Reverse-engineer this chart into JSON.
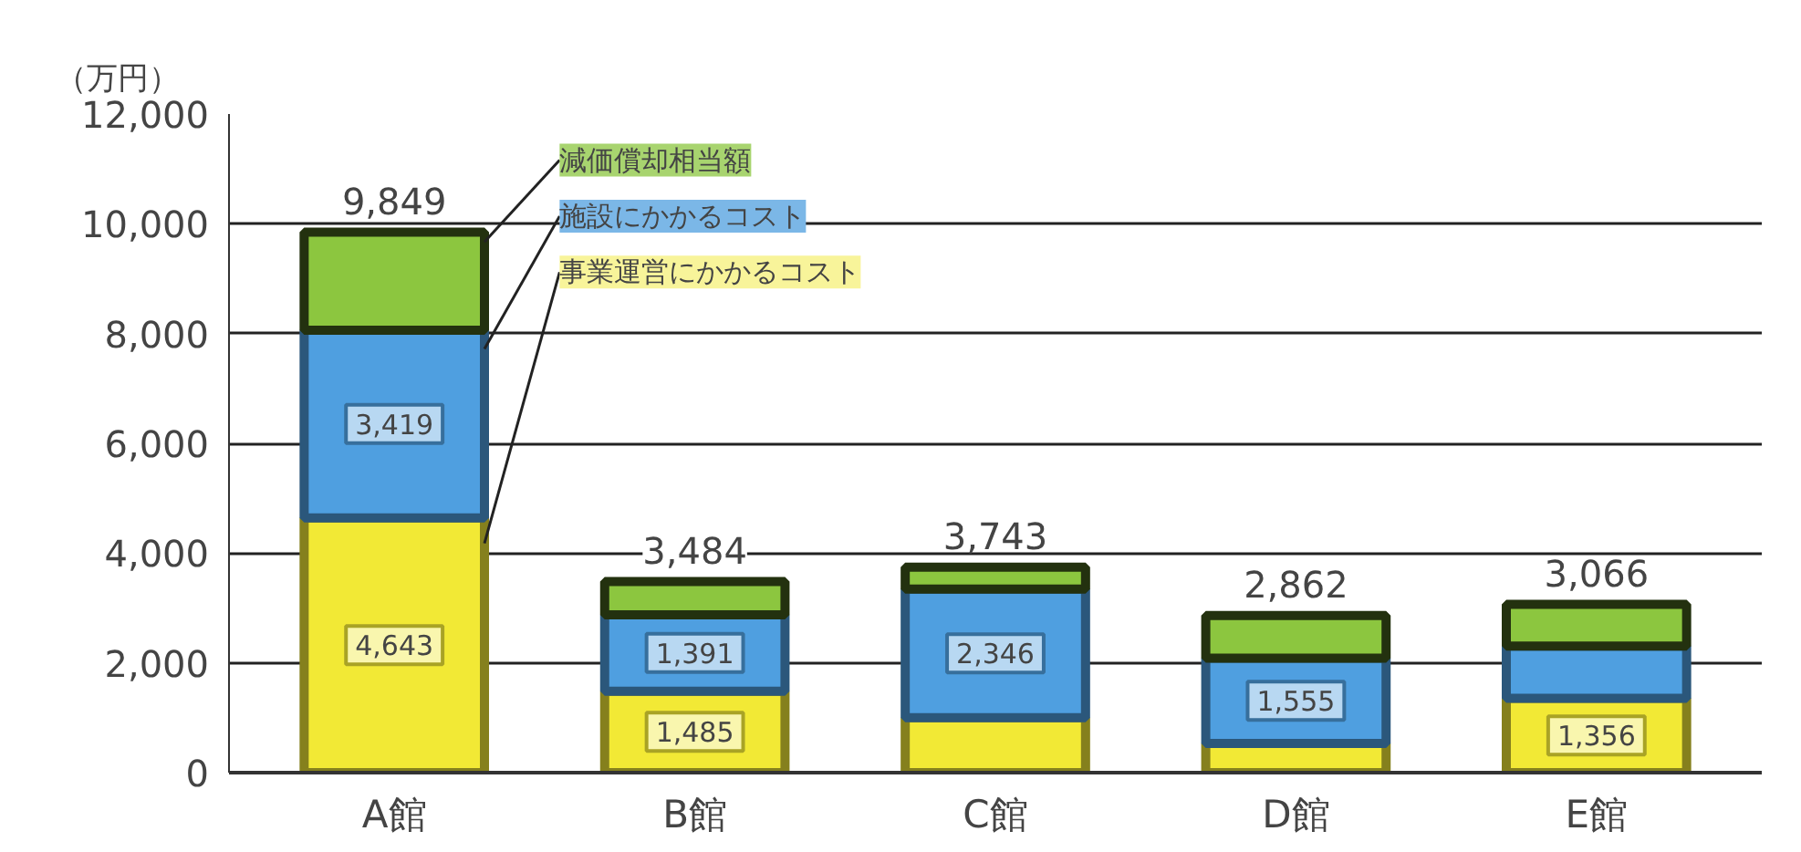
{
  "chart_data": {
    "type": "bar",
    "stacked": true,
    "ylabel": "（万円）",
    "categories": [
      "A館",
      "B館",
      "C館",
      "D館",
      "E館"
    ],
    "series": [
      {
        "name": "事業運営にかかるコスト",
        "color": "#f2e935",
        "values": [
          4643,
          1485,
          1000,
          530,
          1356
        ],
        "value_labels": [
          "4,643",
          "1,485",
          null,
          null,
          "1,356"
        ]
      },
      {
        "name": "施設にかかるコスト",
        "color": "#4f9fe0",
        "values": [
          3419,
          1391,
          2346,
          1555,
          950
        ],
        "value_labels": [
          "3,419",
          "1,391",
          "2,346",
          "1,555",
          null
        ]
      },
      {
        "name": "減価償却相当額",
        "color": "#8cc63f",
        "values": [
          1787,
          608,
          397,
          777,
          760
        ]
      }
    ],
    "totals": [
      "9,849",
      "3,484",
      "3,743",
      "2,862",
      "3,066"
    ],
    "ylim": [
      0,
      12000
    ],
    "yticks": [
      {
        "value": 0,
        "label": "0"
      },
      {
        "value": 2000,
        "label": "2,000"
      },
      {
        "value": 4000,
        "label": "4,000"
      },
      {
        "value": 6000,
        "label": "6,000"
      },
      {
        "value": 8000,
        "label": "8,000"
      },
      {
        "value": 10000,
        "label": "10,000"
      },
      {
        "value": 12000,
        "label": "12,000"
      }
    ],
    "grid": "y"
  }
}
